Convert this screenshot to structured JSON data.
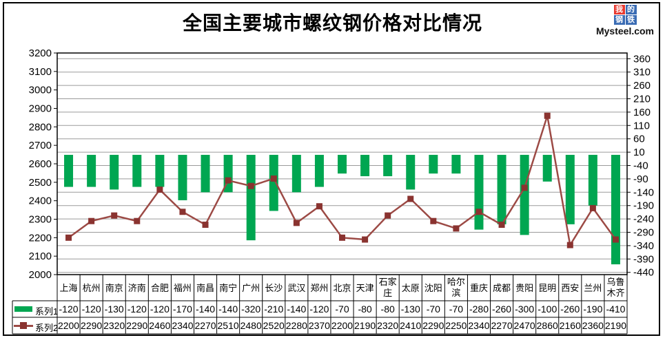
{
  "title": "全国主要城市螺纹钢价格对比情况",
  "logo": {
    "chars": [
      "我",
      "的",
      "钢",
      "铁"
    ],
    "domain": "Mysteel.com",
    "red": "#e8392f",
    "blue": "#3a6cb4"
  },
  "legend": {
    "series1_label": "系列1",
    "series2_label": "系列2"
  },
  "colors": {
    "bar": "#00a651",
    "line": "#9c4a45",
    "marker": "#8a3330",
    "grid": "#9a9a9a",
    "axis": "#000000",
    "text": "#000000"
  },
  "chart_data": {
    "type": "combo-bar-line",
    "title": "全国主要城市螺纹钢价格对比情况",
    "categories": [
      "上海",
      "杭州",
      "南京",
      "济南",
      "合肥",
      "福州",
      "南昌",
      "南宁",
      "广州",
      "长沙",
      "武汉",
      "郑州",
      "北京",
      "天津",
      "石家庄",
      "太原",
      "沈阳",
      "哈尔滨",
      "重庆",
      "成都",
      "贵阳",
      "昆明",
      "西安",
      "兰州",
      "乌鲁木齐"
    ],
    "category_display_lines": [
      [
        "上海"
      ],
      [
        "杭州"
      ],
      [
        "南京"
      ],
      [
        "济南"
      ],
      [
        "合肥"
      ],
      [
        "福州"
      ],
      [
        "南昌"
      ],
      [
        "南宁"
      ],
      [
        "广州"
      ],
      [
        "长沙"
      ],
      [
        "武汉"
      ],
      [
        "郑州"
      ],
      [
        "北京"
      ],
      [
        "天津"
      ],
      [
        "石家",
        "庄"
      ],
      [
        "太原"
      ],
      [
        "沈阳"
      ],
      [
        "哈尔",
        "滨"
      ],
      [
        "重庆"
      ],
      [
        "成都"
      ],
      [
        "贵阳"
      ],
      [
        "昆明"
      ],
      [
        "西安"
      ],
      [
        "兰州"
      ],
      [
        "乌鲁",
        "木齐"
      ]
    ],
    "series": [
      {
        "name": "系列1",
        "type": "bar",
        "axis": "right",
        "color": "#00a651",
        "values": [
          -120,
          -120,
          -130,
          -120,
          -120,
          -170,
          -140,
          -140,
          -320,
          -210,
          -140,
          -120,
          -70,
          -80,
          -80,
          -130,
          -70,
          -70,
          -280,
          -260,
          -300,
          -100,
          -260,
          -190,
          -410
        ]
      },
      {
        "name": "系列2",
        "type": "line",
        "axis": "left",
        "color": "#9c4a45",
        "marker_color": "#8a3330",
        "values": [
          2200,
          2290,
          2320,
          2290,
          2460,
          2340,
          2270,
          2510,
          2480,
          2520,
          2280,
          2370,
          2200,
          2190,
          2320,
          2410,
          2290,
          2250,
          2340,
          2270,
          2470,
          2860,
          2160,
          2360,
          2190
        ]
      }
    ],
    "left_axis": {
      "min": 2000,
      "max": 3200,
      "step": 100,
      "ticks": [
        3200,
        3100,
        3000,
        2900,
        2800,
        2700,
        2600,
        2500,
        2400,
        2300,
        2200,
        2100,
        2000
      ]
    },
    "right_axis": {
      "min": -440,
      "max": 360,
      "step": 50,
      "bar_baseline": 0,
      "ticks": [
        360,
        310,
        260,
        210,
        160,
        110,
        60,
        10,
        -40,
        -90,
        -140,
        -190,
        -240,
        -290,
        -340,
        -390,
        -440
      ]
    },
    "grid": true,
    "legend_position": "bottom-left-table",
    "data_table": true
  }
}
